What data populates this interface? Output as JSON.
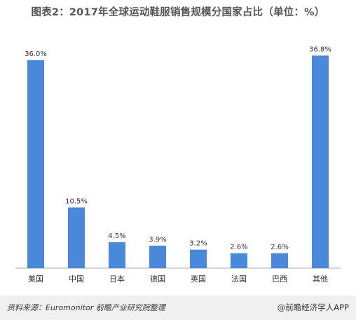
{
  "title": "图表2：2017年全球运动鞋服销售规模分国家占比（单位：%）",
  "chart_data": {
    "type": "bar",
    "categories": [
      "美国",
      "中国",
      "日本",
      "德国",
      "英国",
      "法国",
      "巴西",
      "其他"
    ],
    "values": [
      36.0,
      10.5,
      4.5,
      3.9,
      3.2,
      2.6,
      2.6,
      36.8
    ],
    "value_labels": [
      "36.0%",
      "10.5%",
      "4.5%",
      "3.9%",
      "3.2%",
      "2.6%",
      "2.6%",
      "36.8%"
    ],
    "unit": "%",
    "ylim": [
      0,
      40
    ],
    "grid": false,
    "legend": "none",
    "bar_color": "#4a88dc",
    "axis_color": "#aaaaaa"
  },
  "footer": {
    "source": "资料来源：Euromonitor  前瞻产业研究院整理",
    "brand": "@前瞻经济学人APP"
  }
}
